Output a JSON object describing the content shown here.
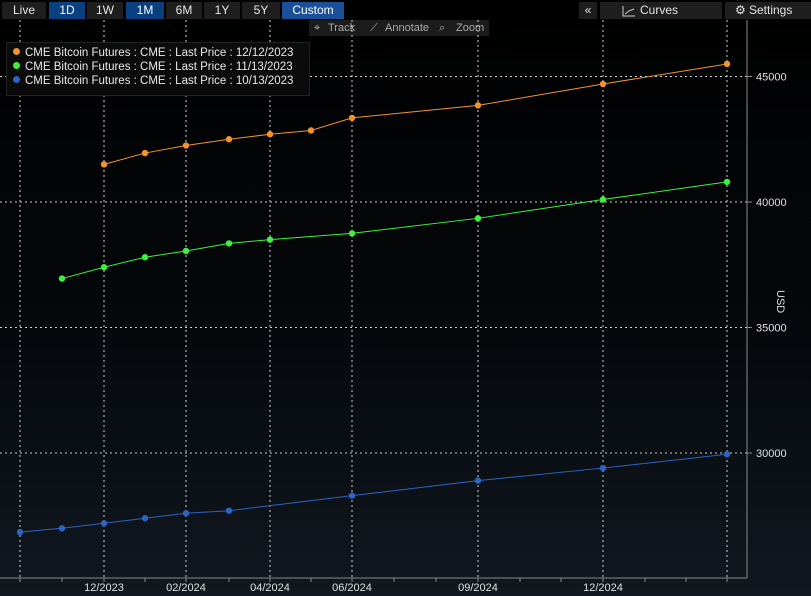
{
  "toolbar": {
    "ranges": [
      "Live",
      "1D",
      "1W",
      "1M",
      "6M",
      "1Y",
      "5Y",
      "Custom"
    ],
    "collapse_label": "«",
    "curves_label": "Curves",
    "settings_label": "Settings"
  },
  "subbar": {
    "track_label": "Track",
    "annotate_label": "Annotate",
    "zoom_label": "Zoom"
  },
  "chart_data": {
    "type": "line",
    "ylabel": "USD",
    "ylim": [
      25000,
      47500
    ],
    "yticks": [
      30000,
      35000,
      40000,
      45000
    ],
    "ytick_labels": [
      "30000",
      "35000",
      "40000",
      "45000"
    ],
    "xticks": [
      "12/2023",
      "02/2024",
      "04/2024",
      "06/2024",
      "09/2024",
      "12/2024"
    ],
    "grid": true,
    "legend_position": "top-left",
    "series": [
      {
        "name": "CME Bitcoin Futures : CME : Last Price : 12/12/2023",
        "color": "#f5922a",
        "points": [
          {
            "x": "12/2023",
            "y": 41500
          },
          {
            "x": "01/2024",
            "y": 41950
          },
          {
            "x": "02/2024",
            "y": 42250
          },
          {
            "x": "03/2024",
            "y": 42500
          },
          {
            "x": "04/2024",
            "y": 42700
          },
          {
            "x": "05/2024",
            "y": 42850
          },
          {
            "x": "06/2024",
            "y": 43350
          },
          {
            "x": "09/2024",
            "y": 43850
          },
          {
            "x": "12/2024",
            "y": 44700
          },
          {
            "x": "03/2025",
            "y": 45500
          }
        ]
      },
      {
        "name": "CME Bitcoin Futures : CME : Last Price : 11/13/2023",
        "color": "#3ef03e",
        "points": [
          {
            "x": "11/2023",
            "y": 36950
          },
          {
            "x": "12/2023",
            "y": 37400
          },
          {
            "x": "01/2024",
            "y": 37800
          },
          {
            "x": "02/2024",
            "y": 38050
          },
          {
            "x": "03/2024",
            "y": 38350
          },
          {
            "x": "04/2024",
            "y": 38500
          },
          {
            "x": "06/2024",
            "y": 38750
          },
          {
            "x": "09/2024",
            "y": 39350
          },
          {
            "x": "12/2024",
            "y": 40100
          },
          {
            "x": "03/2025",
            "y": 40800
          }
        ]
      },
      {
        "name": "CME Bitcoin Futures : CME : Last Price : 10/13/2023",
        "color": "#2c64c4",
        "points": [
          {
            "x": "10/2023",
            "y": 26850
          },
          {
            "x": "11/2023",
            "y": 27000
          },
          {
            "x": "12/2023",
            "y": 27200
          },
          {
            "x": "01/2024",
            "y": 27400
          },
          {
            "x": "02/2024",
            "y": 27600
          },
          {
            "x": "03/2024",
            "y": 27700
          },
          {
            "x": "06/2024",
            "y": 28300
          },
          {
            "x": "09/2024",
            "y": 28900
          },
          {
            "x": "12/2024",
            "y": 29400
          },
          {
            "x": "03/2025",
            "y": 29950
          }
        ]
      }
    ]
  }
}
